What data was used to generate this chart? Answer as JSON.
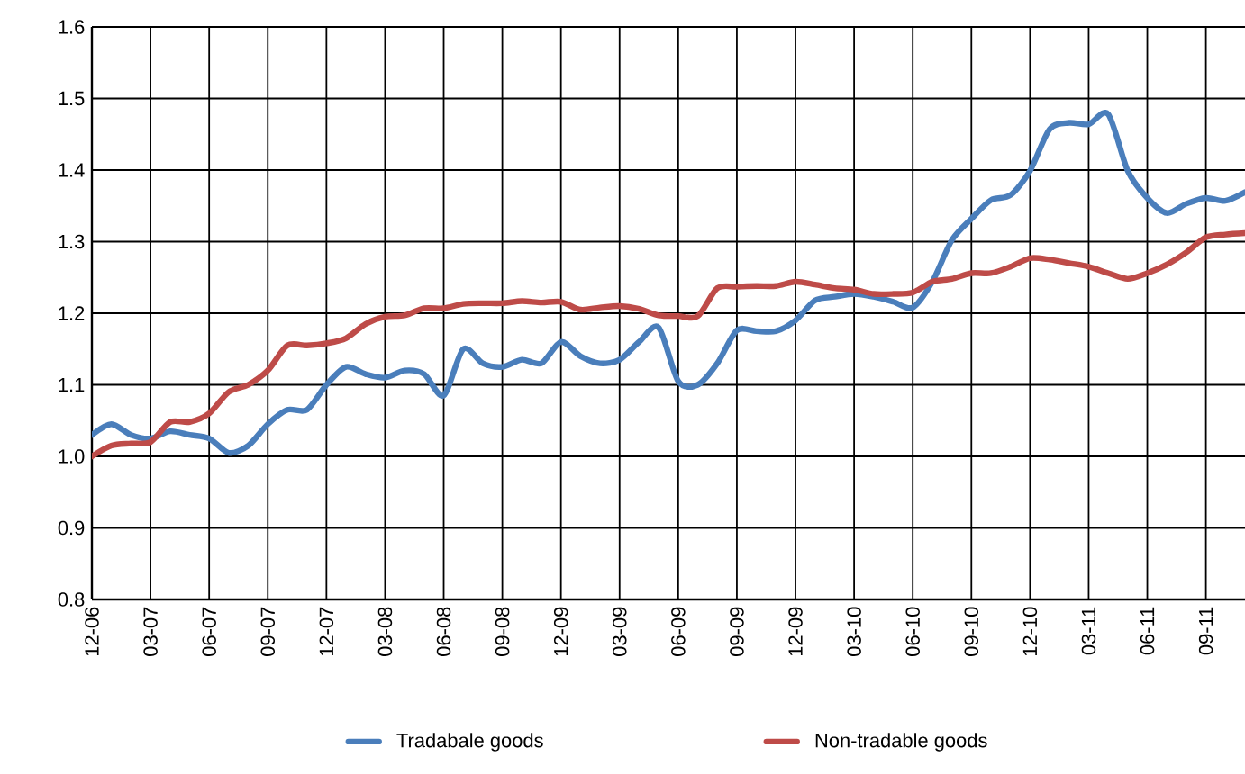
{
  "chart_data": {
    "type": "line",
    "categories": [
      "12-06",
      null,
      null,
      "03-07",
      null,
      null,
      "06-07",
      null,
      null,
      "09-07",
      null,
      null,
      "12-07",
      null,
      null,
      "03-08",
      null,
      null,
      "06-08",
      null,
      null,
      "09-08",
      null,
      null,
      "12-09",
      null,
      null,
      "03-09",
      null,
      null,
      "06-09",
      null,
      null,
      "09-09",
      null,
      null,
      "12-09",
      null,
      null,
      "03-10",
      null,
      null,
      "06-10",
      null,
      null,
      "09-10",
      null,
      null,
      "12-10",
      null,
      null,
      "03-11",
      null,
      null,
      "06-11",
      null,
      null,
      "09-11",
      null,
      null
    ],
    "series": [
      {
        "name": "Tradabale goods",
        "color": "#4a7ebb",
        "values": [
          1.03,
          1.045,
          1.03,
          1.025,
          1.035,
          1.03,
          1.025,
          1.005,
          1.015,
          1.045,
          1.065,
          1.065,
          1.1,
          1.125,
          1.115,
          1.11,
          1.12,
          1.115,
          1.085,
          1.15,
          1.13,
          1.125,
          1.135,
          1.13,
          1.16,
          1.14,
          1.13,
          1.135,
          1.16,
          1.18,
          1.105,
          1.1,
          1.13,
          1.176,
          1.175,
          1.175,
          1.19,
          1.218,
          1.223,
          1.227,
          1.223,
          1.216,
          1.208,
          1.244,
          1.302,
          1.332,
          1.358,
          1.365,
          1.399,
          1.457,
          1.466,
          1.464,
          1.478,
          1.399,
          1.361,
          1.34,
          1.353,
          1.361,
          1.357,
          1.369
        ]
      },
      {
        "name": "Non-tradable goods",
        "color": "#be4b48",
        "values": [
          1.0,
          1.015,
          1.018,
          1.02,
          1.048,
          1.048,
          1.06,
          1.09,
          1.1,
          1.12,
          1.155,
          1.155,
          1.158,
          1.165,
          1.185,
          1.195,
          1.197,
          1.207,
          1.207,
          1.213,
          1.214,
          1.214,
          1.217,
          1.215,
          1.216,
          1.205,
          1.208,
          1.21,
          1.206,
          1.197,
          1.196,
          1.196,
          1.235,
          1.237,
          1.238,
          1.238,
          1.244,
          1.24,
          1.235,
          1.233,
          1.227,
          1.227,
          1.229,
          1.244,
          1.248,
          1.256,
          1.256,
          1.265,
          1.277,
          1.275,
          1.27,
          1.265,
          1.256,
          1.248,
          1.256,
          1.268,
          1.285,
          1.306,
          1.31,
          1.312
        ]
      }
    ],
    "ylim": [
      0.8,
      1.6
    ],
    "yticks": [
      0.8,
      0.9,
      {
        "value": 1.0,
        "label": "1.0"
      },
      1.1,
      1.2,
      1.3,
      1.4,
      1.5,
      1.6
    ],
    "grid": true,
    "legend": "bottom",
    "marker": "none",
    "line_style": "solid"
  }
}
